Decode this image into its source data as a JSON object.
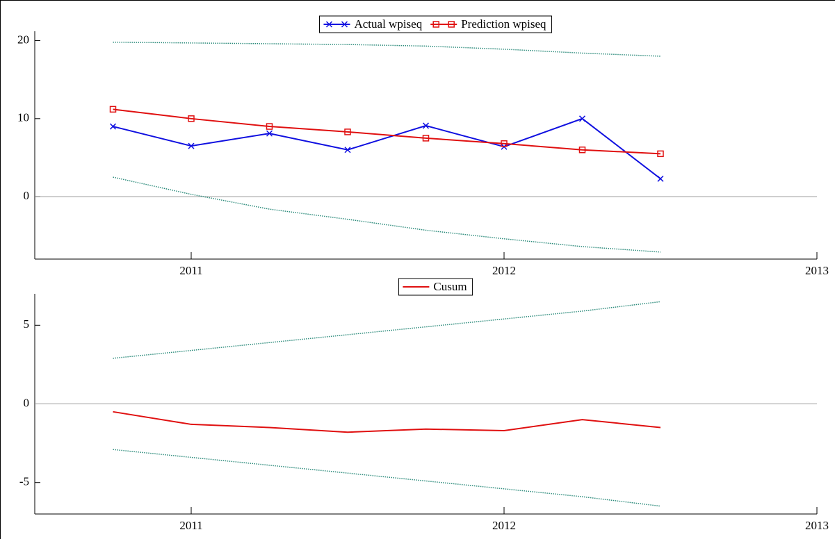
{
  "chart_data": [
    {
      "type": "line",
      "x": [
        2010.75,
        2011,
        2011.25,
        2011.5,
        2011.75,
        2012,
        2012.25,
        2012.5
      ],
      "series": [
        {
          "name": "Actual wpiseq",
          "color": "#1010e0",
          "marker": "x",
          "values": [
            9.0,
            6.5,
            8.1,
            6.0,
            9.1,
            6.4,
            10.0,
            2.3
          ]
        },
        {
          "name": "Prediction wpiseq",
          "color": "#e01010",
          "marker": "square",
          "values": [
            11.2,
            10.0,
            9.0,
            8.3,
            7.5,
            6.8,
            6.0,
            5.5
          ]
        },
        {
          "color": "#2a8a7a",
          "style": "dotted",
          "values": [
            19.8,
            19.7,
            19.6,
            19.5,
            19.3,
            18.9,
            18.4,
            18.0
          ]
        },
        {
          "color": "#2a8a7a",
          "style": "dotted",
          "values": [
            2.5,
            0.3,
            -1.6,
            -2.9,
            -4.3,
            -5.4,
            -6.4,
            -7.1
          ]
        }
      ],
      "xlim": [
        2010.5,
        2013
      ],
      "xticks": [
        2011,
        2012,
        2013
      ],
      "ylim": [
        -8,
        21.2
      ],
      "yticks": [
        0,
        10,
        20
      ],
      "zero_line": true
    },
    {
      "type": "line",
      "x": [
        2010.75,
        2011,
        2011.25,
        2011.5,
        2011.75,
        2012,
        2012.25,
        2012.5
      ],
      "series": [
        {
          "name": "Cusum",
          "color": "#e01010",
          "values": [
            -0.5,
            -1.3,
            -1.5,
            -1.8,
            -1.6,
            -1.7,
            -1.0,
            -1.5
          ]
        },
        {
          "color": "#2a8a7a",
          "style": "dotted",
          "values": [
            2.9,
            3.4,
            3.9,
            4.4,
            4.9,
            5.4,
            5.9,
            6.5
          ]
        },
        {
          "color": "#2a8a7a",
          "style": "dotted",
          "values": [
            -2.9,
            -3.4,
            -3.9,
            -4.4,
            -4.9,
            -5.4,
            -5.9,
            -6.5
          ]
        }
      ],
      "xlim": [
        2010.5,
        2013
      ],
      "xticks": [
        2011,
        2012,
        2013
      ],
      "ylim": [
        -7,
        7
      ],
      "yticks": [
        -5,
        0,
        5
      ],
      "zero_line": true
    }
  ]
}
